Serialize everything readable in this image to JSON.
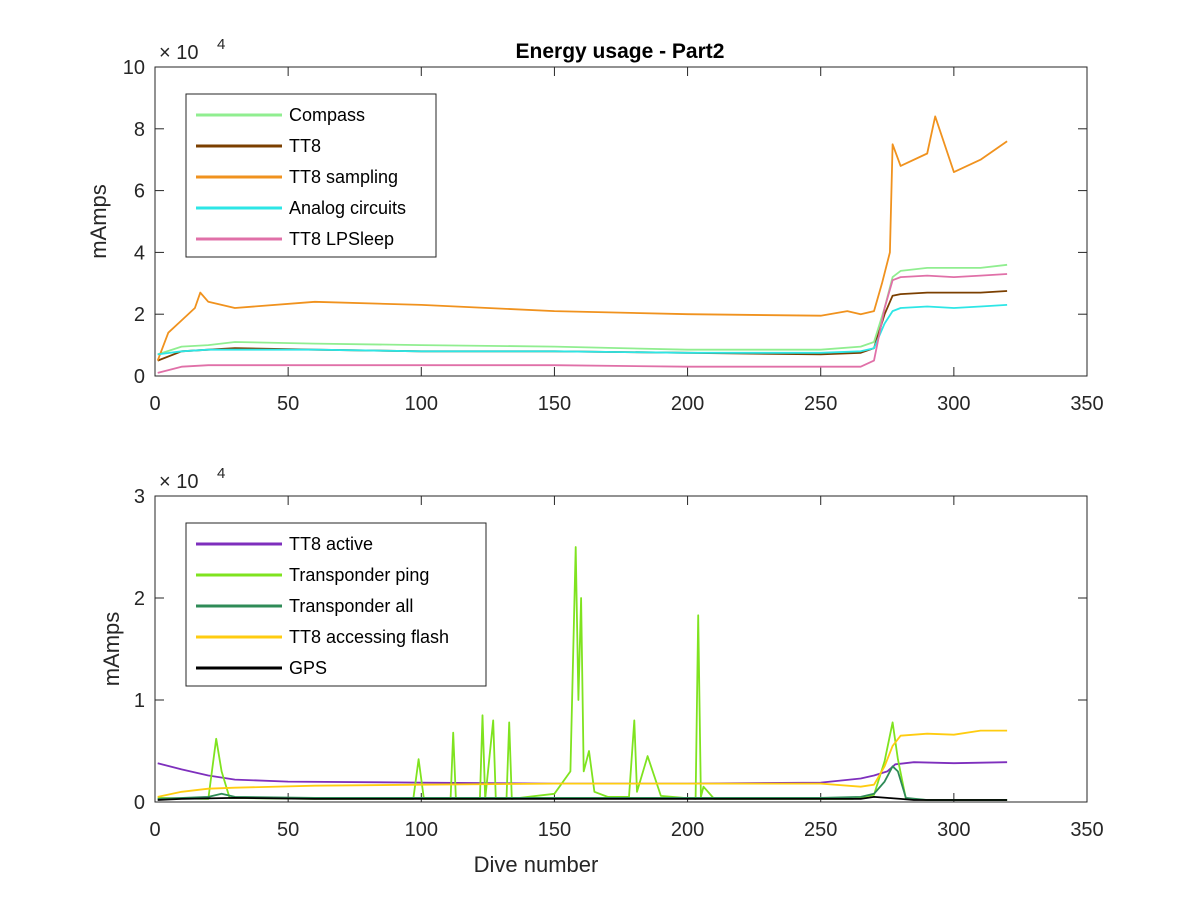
{
  "figure": {
    "title": "Energy usage - Part2"
  },
  "chart_data": [
    {
      "type": "line",
      "title": "Energy usage - Part2",
      "xlabel": "",
      "ylabel": "mAmps",
      "xlim": [
        0,
        350
      ],
      "ylim": [
        0,
        100000
      ],
      "y_exponent_label": "× 10",
      "y_exponent_power": "4",
      "x_ticks": [
        "0",
        "50",
        "100",
        "150",
        "200",
        "250",
        "300",
        "350"
      ],
      "y_ticks": [
        "0",
        "2",
        "4",
        "6",
        "8",
        "10"
      ],
      "legend_location": "top-left",
      "grid": false,
      "series": [
        {
          "name": "Compass",
          "color": "#90ee90",
          "x": [
            1,
            10,
            20,
            30,
            60,
            100,
            150,
            200,
            250,
            265,
            270,
            274,
            277,
            280,
            290,
            300,
            310,
            320
          ],
          "values": [
            7000,
            9500,
            10000,
            11000,
            10500,
            10000,
            9500,
            8500,
            8500,
            9500,
            11000,
            22000,
            32000,
            34000,
            35000,
            35000,
            35000,
            36000
          ]
        },
        {
          "name": "TT8",
          "color": "#7b3f00",
          "x": [
            1,
            10,
            20,
            30,
            60,
            100,
            150,
            200,
            250,
            265,
            270,
            274,
            277,
            280,
            290,
            300,
            310,
            320
          ],
          "values": [
            5000,
            8000,
            8500,
            9000,
            8500,
            8000,
            8000,
            7500,
            7000,
            7500,
            9000,
            20000,
            26000,
            26500,
            27000,
            27000,
            27000,
            27500
          ]
        },
        {
          "name": "TT8 sampling",
          "color": "#f0921e",
          "x": [
            1,
            5,
            10,
            15,
            17,
            20,
            30,
            60,
            100,
            150,
            200,
            250,
            260,
            265,
            270,
            273,
            276,
            277,
            280,
            290,
            293,
            300,
            310,
            320
          ],
          "values": [
            5000,
            14000,
            18000,
            22000,
            27000,
            24000,
            22000,
            24000,
            23000,
            21000,
            20000,
            19500,
            21000,
            20000,
            21000,
            30000,
            40000,
            75000,
            68000,
            72000,
            84000,
            66000,
            70000,
            76000
          ]
        },
        {
          "name": "Analog circuits",
          "color": "#2de6e6",
          "x": [
            1,
            10,
            20,
            30,
            60,
            100,
            150,
            200,
            250,
            265,
            270,
            274,
            277,
            280,
            290,
            300,
            310,
            320
          ],
          "values": [
            7000,
            8000,
            8500,
            8500,
            8500,
            8000,
            8000,
            7500,
            7500,
            8000,
            9000,
            17000,
            21000,
            22000,
            22500,
            22000,
            22500,
            23000
          ]
        },
        {
          "name": "TT8 LPSleep",
          "color": "#e070a8",
          "x": [
            1,
            10,
            20,
            30,
            60,
            100,
            150,
            200,
            250,
            265,
            270,
            274,
            277,
            280,
            290,
            300,
            310,
            320
          ],
          "values": [
            1000,
            3000,
            3500,
            3500,
            3500,
            3500,
            3500,
            3000,
            3000,
            3000,
            5000,
            22000,
            31000,
            32000,
            32500,
            32000,
            32500,
            33000
          ]
        }
      ]
    },
    {
      "type": "line",
      "title": "",
      "xlabel": "Dive number",
      "ylabel": "mAmps",
      "xlim": [
        0,
        350
      ],
      "ylim": [
        0,
        30000
      ],
      "y_exponent_label": "× 10",
      "y_exponent_power": "4",
      "x_ticks": [
        "0",
        "50",
        "100",
        "150",
        "200",
        "250",
        "300",
        "350"
      ],
      "y_ticks": [
        "0",
        "1",
        "2",
        "3"
      ],
      "legend_location": "top-left",
      "grid": false,
      "series": [
        {
          "name": "TT8 active",
          "color": "#7e2fbd",
          "x": [
            1,
            10,
            20,
            30,
            50,
            100,
            150,
            200,
            250,
            265,
            270,
            275,
            278,
            285,
            300,
            320
          ],
          "values": [
            3800,
            3200,
            2600,
            2200,
            2000,
            1900,
            1800,
            1800,
            1900,
            2300,
            2600,
            3000,
            3700,
            3900,
            3800,
            3900
          ]
        },
        {
          "name": "Transponder ping",
          "color": "#7fe31f",
          "x": [
            1,
            20,
            23,
            25,
            28,
            60,
            97,
            99,
            101,
            111,
            112,
            113,
            122,
            123,
            124,
            127,
            128,
            132,
            133,
            134,
            140,
            150,
            156,
            158,
            159,
            160,
            161,
            163,
            165,
            170,
            178,
            180,
            181,
            185,
            190,
            203,
            204,
            205,
            206,
            210,
            250,
            262,
            270,
            274,
            277,
            279,
            282,
            290,
            320
          ],
          "values": [
            400,
            300,
            6200,
            3000,
            400,
            300,
            300,
            4200,
            300,
            300,
            6800,
            300,
            300,
            8500,
            300,
            8000,
            300,
            300,
            7800,
            300,
            500,
            800,
            3000,
            25000,
            10000,
            20000,
            3000,
            5000,
            1000,
            500,
            500,
            8000,
            1000,
            4500,
            600,
            300,
            18300,
            500,
            1500,
            300,
            300,
            300,
            700,
            4000,
            7800,
            4200,
            300,
            200,
            200
          ]
        },
        {
          "name": "Transponder all",
          "color": "#2e8b57",
          "x": [
            1,
            20,
            25,
            30,
            60,
            100,
            150,
            200,
            250,
            265,
            270,
            274,
            277,
            279,
            282,
            290,
            320
          ],
          "values": [
            300,
            500,
            800,
            500,
            400,
            400,
            400,
            400,
            400,
            500,
            800,
            2000,
            3500,
            3000,
            400,
            200,
            200
          ]
        },
        {
          "name": "TT8 accessing flash",
          "color": "#ffcc10",
          "x": [
            1,
            10,
            20,
            30,
            60,
            100,
            150,
            200,
            250,
            265,
            270,
            274,
            277,
            280,
            290,
            300,
            310,
            320
          ],
          "values": [
            500,
            1000,
            1300,
            1400,
            1600,
            1700,
            1800,
            1800,
            1800,
            1500,
            1700,
            3500,
            5500,
            6500,
            6700,
            6600,
            7000,
            7000
          ]
        },
        {
          "name": "GPS",
          "color": "#000000",
          "x": [
            1,
            10,
            30,
            60,
            100,
            150,
            200,
            250,
            265,
            270,
            275,
            280,
            285,
            300,
            320
          ],
          "values": [
            200,
            300,
            400,
            300,
            300,
            300,
            300,
            300,
            300,
            500,
            400,
            300,
            200,
            200,
            200
          ]
        }
      ]
    }
  ]
}
